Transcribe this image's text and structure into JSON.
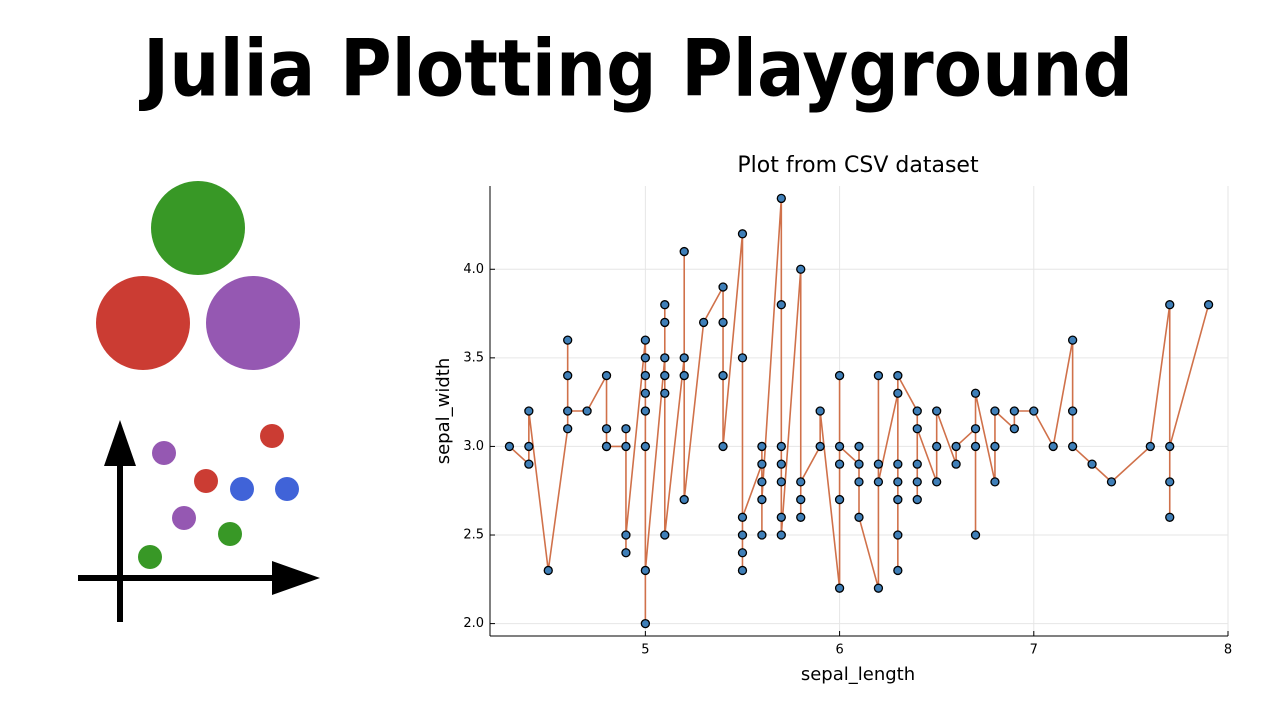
{
  "header": {
    "title": "Julia Plotting Playground"
  },
  "chart_data": {
    "type": "line",
    "title": "Plot from CSV dataset",
    "x_label": "sepal_length",
    "y_label": "sepal_width",
    "x": [
      4.3,
      4.4,
      4.4,
      4.4,
      4.5,
      4.6,
      4.6,
      4.6,
      4.6,
      4.7,
      4.8,
      4.8,
      4.8,
      4.8,
      4.9,
      4.9,
      4.9,
      4.9,
      5.0,
      5.0,
      5.0,
      5.0,
      5.0,
      5.0,
      5.0,
      5.0,
      5.1,
      5.1,
      5.1,
      5.1,
      5.1,
      5.1,
      5.2,
      5.2,
      5.2,
      5.2,
      5.3,
      5.4,
      5.4,
      5.4,
      5.4,
      5.5,
      5.5,
      5.5,
      5.5,
      5.5,
      5.5,
      5.6,
      5.6,
      5.6,
      5.6,
      5.6,
      5.7,
      5.7,
      5.7,
      5.7,
      5.7,
      5.7,
      5.7,
      5.8,
      5.8,
      5.8,
      5.8,
      5.9,
      5.9,
      6.0,
      6.0,
      6.0,
      6.0,
      6.0,
      6.1,
      6.1,
      6.1,
      6.1,
      6.2,
      6.2,
      6.2,
      6.2,
      6.3,
      6.3,
      6.3,
      6.3,
      6.3,
      6.3,
      6.3,
      6.4,
      6.4,
      6.4,
      6.4,
      6.4,
      6.5,
      6.5,
      6.5,
      6.6,
      6.6,
      6.7,
      6.7,
      6.7,
      6.7,
      6.8,
      6.8,
      6.8,
      6.9,
      6.9,
      7.0,
      7.1,
      7.2,
      7.2,
      7.2,
      7.3,
      7.4,
      7.6,
      7.7,
      7.7,
      7.7,
      7.7,
      7.9
    ],
    "values": [
      3.0,
      2.9,
      3.0,
      3.2,
      2.3,
      3.1,
      3.4,
      3.6,
      3.2,
      3.2,
      3.4,
      3.0,
      3.1,
      3.0,
      3.0,
      3.1,
      2.4,
      2.5,
      3.6,
      3.4,
      3.0,
      3.5,
      3.2,
      3.3,
      2.0,
      2.3,
      3.5,
      3.8,
      3.7,
      3.3,
      3.4,
      2.5,
      3.5,
      3.4,
      4.1,
      2.7,
      3.7,
      3.9,
      3.7,
      3.4,
      3.0,
      4.2,
      3.5,
      2.3,
      2.4,
      2.5,
      2.6,
      2.9,
      3.0,
      2.5,
      2.8,
      2.7,
      4.4,
      3.8,
      2.8,
      2.6,
      3.0,
      2.9,
      2.5,
      4.0,
      2.7,
      2.6,
      2.8,
      3.0,
      3.2,
      2.2,
      2.9,
      3.4,
      2.7,
      3.0,
      2.9,
      2.8,
      3.0,
      2.6,
      2.2,
      2.9,
      3.4,
      2.8,
      3.3,
      2.5,
      2.3,
      2.9,
      2.7,
      2.8,
      3.4,
      3.2,
      2.9,
      2.7,
      2.8,
      3.1,
      2.8,
      3.0,
      3.2,
      2.9,
      3.0,
      3.1,
      3.0,
      2.5,
      3.3,
      2.8,
      3.0,
      3.2,
      3.1,
      3.2,
      3.2,
      3.0,
      3.6,
      3.2,
      3.0,
      2.9,
      2.8,
      3.0,
      3.8,
      2.6,
      2.8,
      3.0,
      3.8
    ],
    "line_color": "#d0714a",
    "marker_color": "#3f7fb8",
    "xlim": [
      4.2,
      8.0
    ],
    "xticks": [
      5,
      6,
      7,
      8
    ],
    "ylim": [
      1.93,
      4.47
    ],
    "yticks": [
      {
        "value": 2.0,
        "label": "2.0"
      },
      {
        "value": 2.5,
        "label": "2.5"
      },
      {
        "value": 3.0,
        "label": "3.0"
      },
      {
        "value": 3.5,
        "label": "3.5"
      },
      {
        "value": 4.0,
        "label": "4.0"
      }
    ],
    "grid": true
  }
}
